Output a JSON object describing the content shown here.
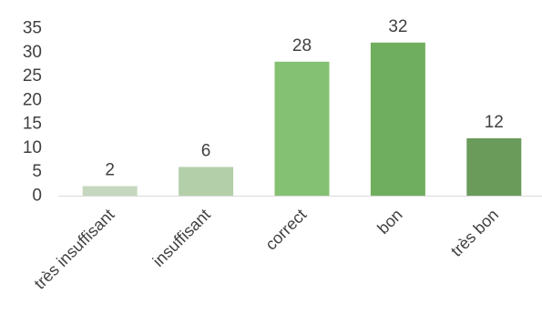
{
  "chart_data": {
    "type": "bar",
    "categories": [
      "très insuffisant",
      "insuffisant",
      "correct",
      "bon",
      "très bon"
    ],
    "values": [
      2,
      6,
      28,
      32,
      12
    ],
    "data_labels": [
      "2",
      "6",
      "28",
      "32",
      "12"
    ],
    "bar_colors": [
      "#c5d8bf",
      "#b3cfaa",
      "#84c172",
      "#6fae5e",
      "#6a9b5b"
    ],
    "title": "",
    "xlabel": "",
    "ylabel": "",
    "ylim": [
      0,
      35
    ],
    "yticks": [
      "0",
      "5",
      "10",
      "15",
      "20",
      "25",
      "30",
      "35"
    ],
    "grid": false,
    "legend": "none"
  }
}
